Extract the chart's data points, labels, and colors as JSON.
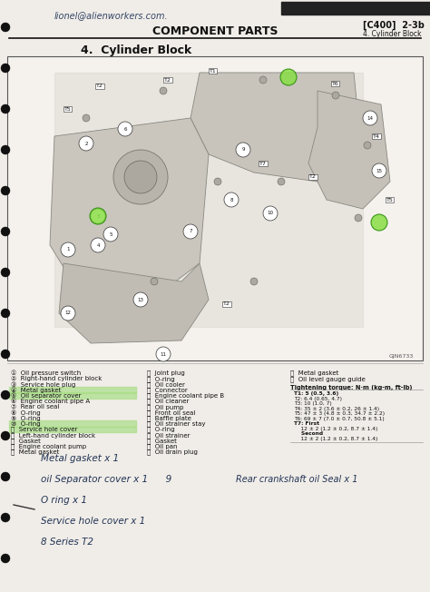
{
  "bg_color": "#f0ede8",
  "page_bg": "#e8e4de",
  "title_main": "COMPONENT PARTS",
  "title_ref": "[C400]  2-3b",
  "title_sub_ref": "4. Cylinder Block",
  "section_title": "4.  Cylinder Block",
  "handwriting_top": "lionel@alienworkers.com.",
  "diagram_label": "GJN6733",
  "parts_left_col1": [
    "①  Oil pressure switch",
    "②  Right-hand cylinder block",
    "③  Service hole plug",
    "④  Metal gasket",
    "⑤  Oil separator cover",
    "⑥  Engine coolant pipe A",
    "⑦  Rear oil seal",
    "⑧  O-ring",
    "⑨  O-ring",
    "⑩  O-ring",
    "⑪  Service hole cover",
    "⑫  Left-hand cylinder block",
    "⑬  Gasket",
    "⑭  Engine coolant pump",
    "⑮  Metal gasket"
  ],
  "highlighted_parts": [
    3,
    4,
    9,
    10
  ],
  "parts_mid_col": [
    "⑯  Joint plug",
    "⑰  O-ring",
    "⑱  Oil cooler",
    "⑲  Connector",
    "⑳  Engine coolant pipe B",
    "⑴  Oil cleaner",
    "⑵  Oil pump",
    "⑶  Front oil seal",
    "⑷  Baffle plate",
    "⑸  Oil strainer stay",
    "⑹  O-ring",
    "⑺  Oil strainer",
    "⑻  Gasket",
    "⑼  Oil pan",
    "⑽  Oil drain plug"
  ],
  "parts_right_col": [
    "⑾  Metal gasket",
    "⑿  Oil level gauge guide"
  ],
  "tightening_title": "Tightening torque: N·m (kg-m, ft-lb)",
  "tightening_values": [
    "T1: 5 (0.5, 3.6)",
    "T2: 6.4 (0.65, 4.7)",
    "T3: 10 (1.0, 7)",
    "T4: 35 ± 2 (3.6 ± 0.2, 26 ± 1.4)",
    "T5: 47 ± 3 (4.8 ± 0.3, 34.7 ± 2.2)",
    "T6: 69 ± 7 (7.0 ± 0.7, 50.8 ± 5.1)",
    "T7: First",
    "    12 ± 2 (1.2 ± 0.2, 8.7 ± 1.4)",
    "    Second",
    "    12 ± 2 (1.2 ± 0.2, 8.7 ± 1.4)"
  ],
  "handwriting_notes": [
    "Metal gasket x 1",
    "oil Separator cover x 1      9",
    "O ring x 1",
    "Service hole cover x 1",
    "8 Series T2"
  ],
  "handwriting_right": "Rear crankshaft oil Seal x 1"
}
